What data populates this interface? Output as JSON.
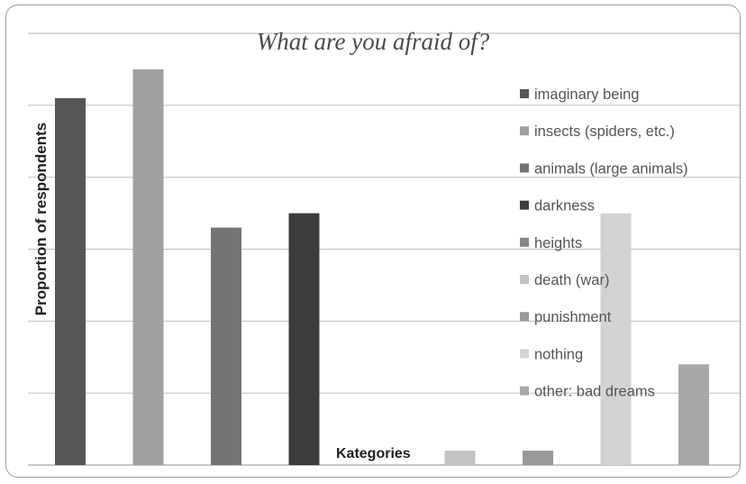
{
  "chart_data": {
    "type": "bar",
    "title": "What are you afraid of?",
    "xlabel": "Kategories",
    "ylabel": "Proportion of respondents",
    "categories": [
      "imaginary being",
      "insects (spiders, etc.)",
      "animals (large animals)",
      "darkness",
      "heights",
      "death (war)",
      "punishment",
      "nothing",
      "other: bad dreams"
    ],
    "values": [
      5.1,
      5.5,
      3.3,
      3.5,
      0,
      0.2,
      0.2,
      3.5,
      1.4
    ],
    "colors": [
      "#555555",
      "#a0a0a0",
      "#747474",
      "#3c3c3c",
      "#888888",
      "#c4c4c4",
      "#999999",
      "#d3d3d3",
      "#a9a9a9"
    ],
    "ylim": [
      0,
      6
    ],
    "grid": true,
    "legend_position": "right"
  }
}
